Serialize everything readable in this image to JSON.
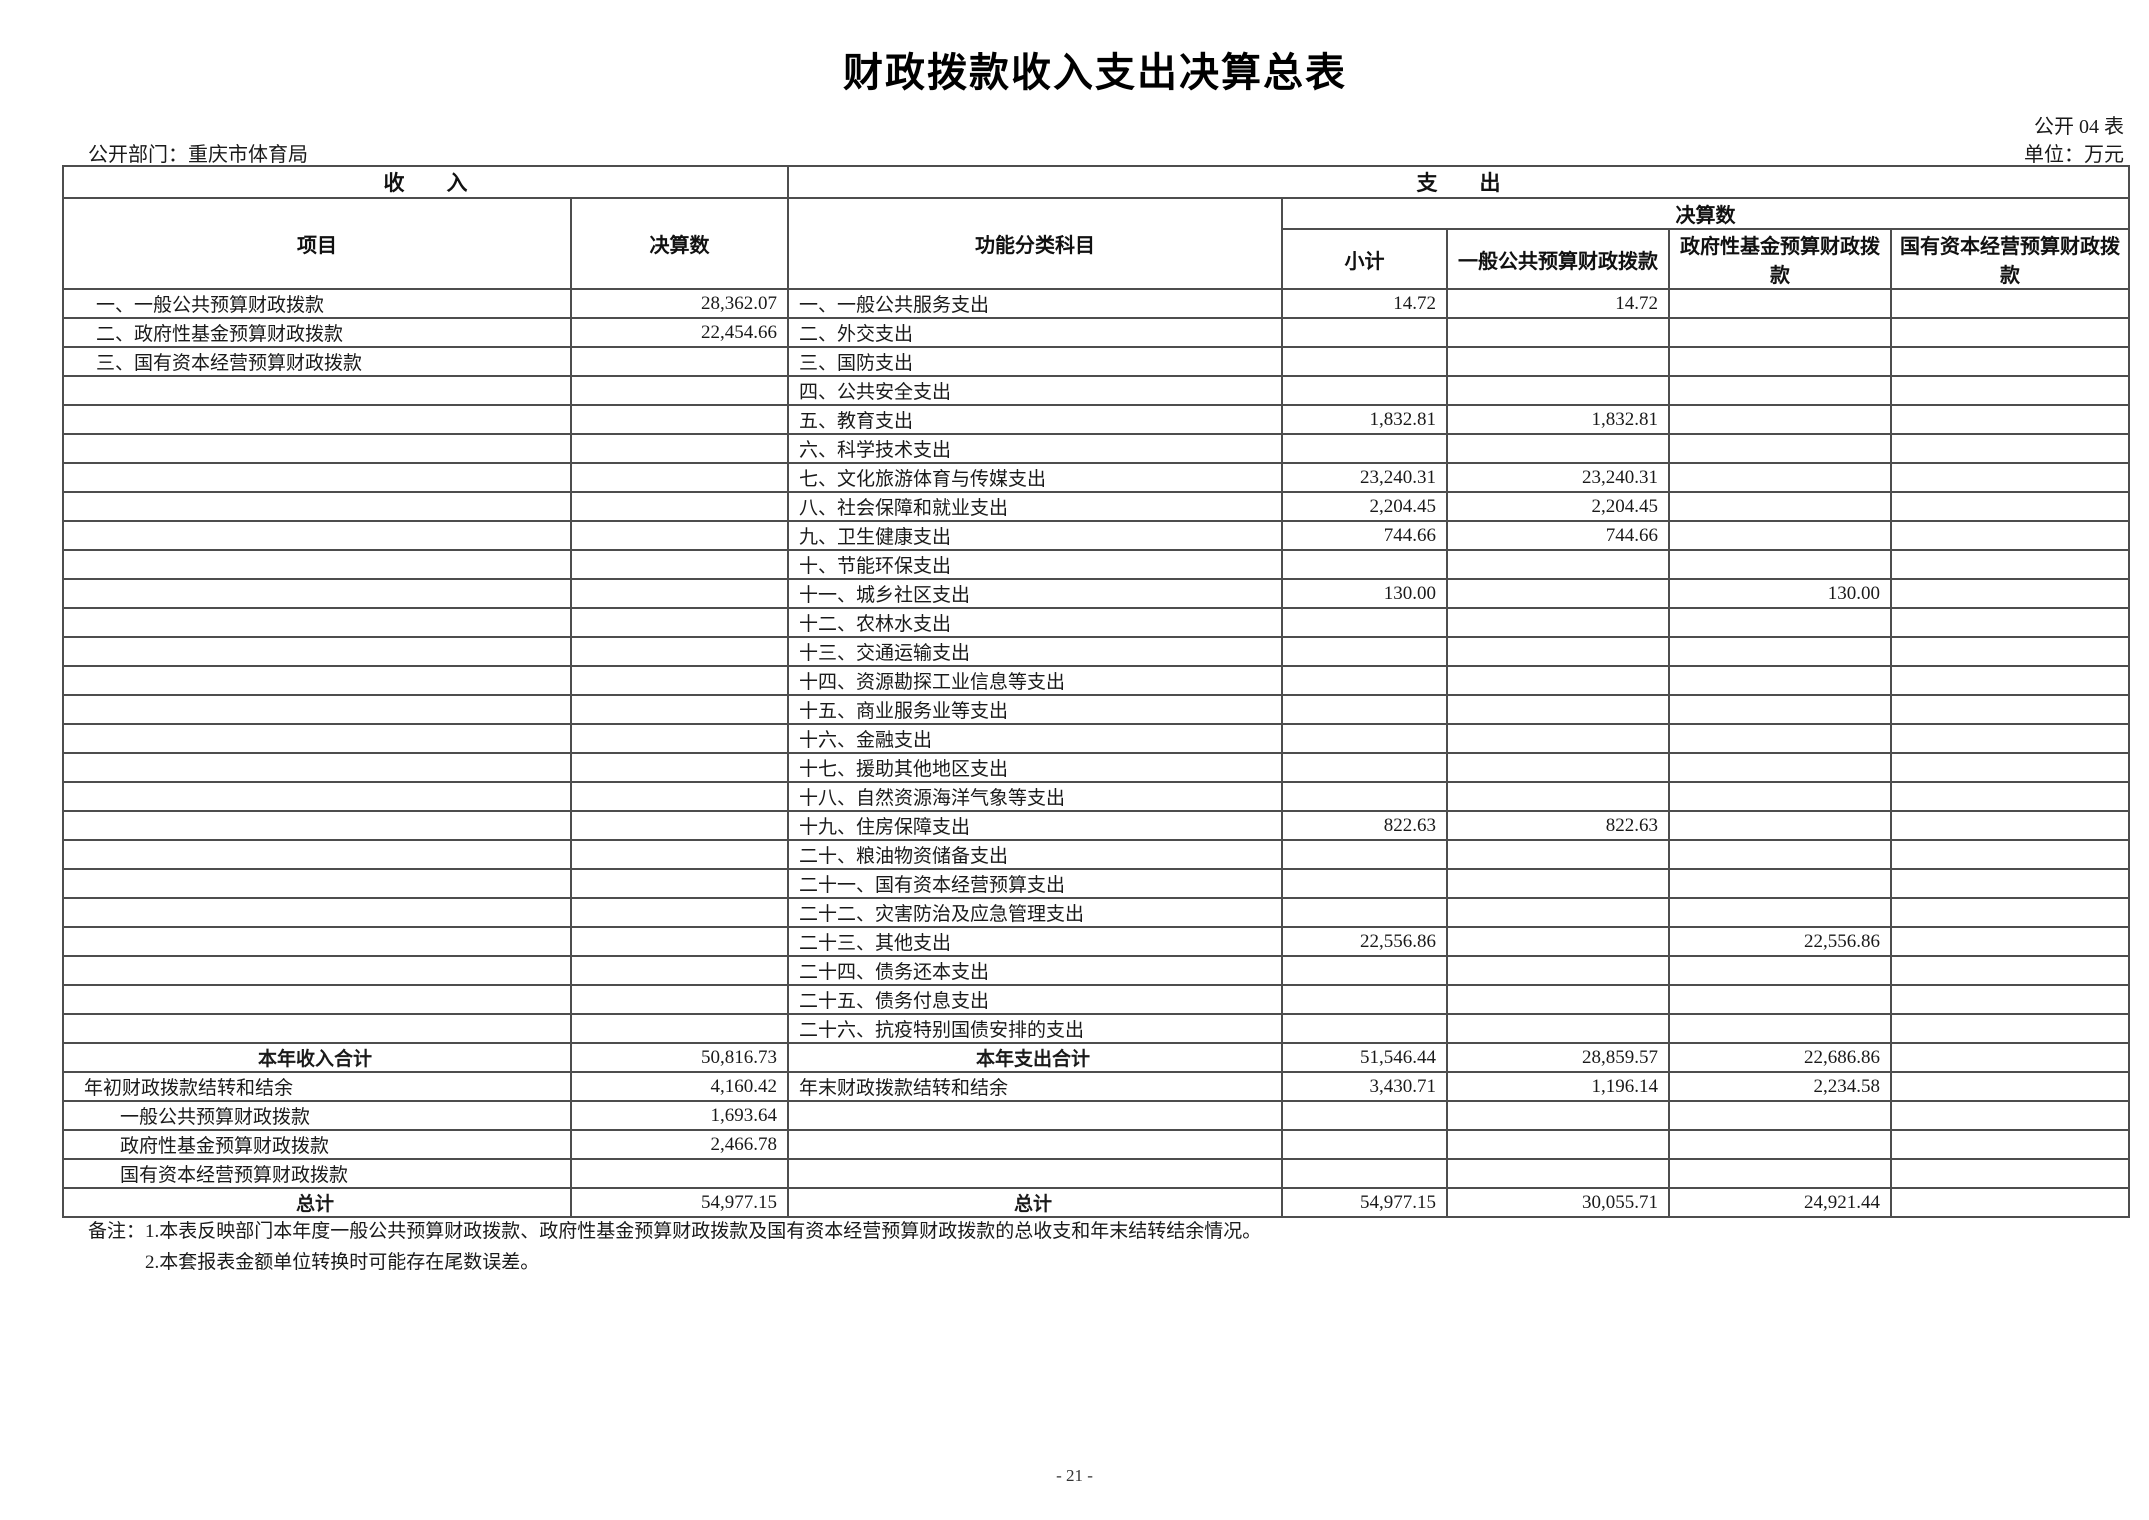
{
  "page": {
    "title": "财政拨款收入支出决算总表",
    "table_code": "公开 04 表",
    "department_label": "公开部门：重庆市体育局",
    "unit_label": "单位：万元",
    "notes": [
      "备注：1.本表反映部门本年度一般公共预算财政拨款、政府性基金预算财政拨款及国有资本经营预算财政拨款的总收支和年末结转结余情况。",
      "2.本套报表金额单位转换时可能存在尾数误差。"
    ],
    "page_number": "- 21 -"
  },
  "table": {
    "sections": {
      "income": "收　　入",
      "expenditure": "支　　出"
    },
    "headers": {
      "income_item": "项目",
      "income_amount": "决算数",
      "exp_subject": "功能分类科目",
      "exp_amount_group": "决算数",
      "exp_cols": [
        "小计",
        "一般公共预算财政拨款",
        "政府性基金预算财政拨款",
        "国有资本经营预算财政拨款"
      ]
    },
    "rows": [
      {
        "income": {
          "label": "一、一般公共预算财政拨款",
          "value": "28,362.07"
        },
        "expense": {
          "label": "一、一般公共服务支出",
          "subtotal": "14.72",
          "general": "14.72",
          "fund": "",
          "capital": ""
        }
      },
      {
        "income": {
          "label": "二、政府性基金预算财政拨款",
          "value": "22,454.66"
        },
        "expense": {
          "label": "二、外交支出"
        }
      },
      {
        "income": {
          "label": "三、国有资本经营预算财政拨款",
          "value": ""
        },
        "expense": {
          "label": "三、国防支出"
        }
      },
      {
        "income": {},
        "expense": {
          "label": "四、公共安全支出"
        }
      },
      {
        "income": {},
        "expense": {
          "label": "五、教育支出",
          "subtotal": "1,832.81",
          "general": "1,832.81"
        }
      },
      {
        "income": {},
        "expense": {
          "label": "六、科学技术支出"
        }
      },
      {
        "income": {},
        "expense": {
          "label": "七、文化旅游体育与传媒支出",
          "subtotal": "23,240.31",
          "general": "23,240.31"
        }
      },
      {
        "income": {},
        "expense": {
          "label": "八、社会保障和就业支出",
          "subtotal": "2,204.45",
          "general": "2,204.45"
        }
      },
      {
        "income": {},
        "expense": {
          "label": "九、卫生健康支出",
          "subtotal": "744.66",
          "general": "744.66"
        }
      },
      {
        "income": {},
        "expense": {
          "label": "十、节能环保支出"
        }
      },
      {
        "income": {},
        "expense": {
          "label": "十一、城乡社区支出",
          "subtotal": "130.00",
          "general": "",
          "fund": "130.00"
        }
      },
      {
        "income": {},
        "expense": {
          "label": "十二、农林水支出"
        }
      },
      {
        "income": {},
        "expense": {
          "label": "十三、交通运输支出"
        }
      },
      {
        "income": {},
        "expense": {
          "label": "十四、资源勘探工业信息等支出"
        }
      },
      {
        "income": {},
        "expense": {
          "label": "十五、商业服务业等支出"
        }
      },
      {
        "income": {},
        "expense": {
          "label": "十六、金融支出"
        }
      },
      {
        "income": {},
        "expense": {
          "label": "十七、援助其他地区支出"
        }
      },
      {
        "income": {},
        "expense": {
          "label": "十八、自然资源海洋气象等支出"
        }
      },
      {
        "income": {},
        "expense": {
          "label": "十九、住房保障支出",
          "subtotal": "822.63",
          "general": "822.63"
        }
      },
      {
        "income": {},
        "expense": {
          "label": "二十、粮油物资储备支出"
        }
      },
      {
        "income": {},
        "expense": {
          "label": "二十一、国有资本经营预算支出"
        }
      },
      {
        "income": {},
        "expense": {
          "label": "二十二、灾害防治及应急管理支出"
        }
      },
      {
        "income": {},
        "expense": {
          "label": "二十三、其他支出",
          "subtotal": "22,556.86",
          "general": "",
          "fund": "22,556.86"
        }
      },
      {
        "income": {},
        "expense": {
          "label": "二十四、债务还本支出"
        }
      },
      {
        "income": {},
        "expense": {
          "label": "二十五、债务付息支出"
        }
      },
      {
        "income": {},
        "expense": {
          "label": "二十六、抗疫特别国债安排的支出"
        }
      },
      {
        "income": {
          "label": "本年收入合计",
          "value": "50,816.73",
          "is_total": true
        },
        "expense": {
          "label": "本年支出合计",
          "is_total": true,
          "subtotal": "51,546.44",
          "general": "28,859.57",
          "fund": "22,686.86"
        }
      },
      {
        "income": {
          "label": "年初财政拨款结转和结余",
          "value": "4,160.42",
          "is_flush": true
        },
        "expense": {
          "label": "年末财政拨款结转和结余",
          "subtotal": "3,430.71",
          "general": "1,196.14",
          "fund": "2,234.58"
        }
      },
      {
        "income": {
          "label": "一般公共预算财政拨款",
          "value": "1,693.64",
          "is_indent": true
        },
        "expense": {}
      },
      {
        "income": {
          "label": "政府性基金预算财政拨款",
          "value": "2,466.78",
          "is_indent": true
        },
        "expense": {}
      },
      {
        "income": {
          "label": "国有资本经营预算财政拨款",
          "value": "",
          "is_indent": true
        },
        "expense": {}
      },
      {
        "income": {
          "label": "总计",
          "value": "54,977.15",
          "is_total": true
        },
        "expense": {
          "label": "总计",
          "is_total": true,
          "subtotal": "54,977.15",
          "general": "30,055.71",
          "fund": "24,921.44"
        }
      }
    ]
  }
}
